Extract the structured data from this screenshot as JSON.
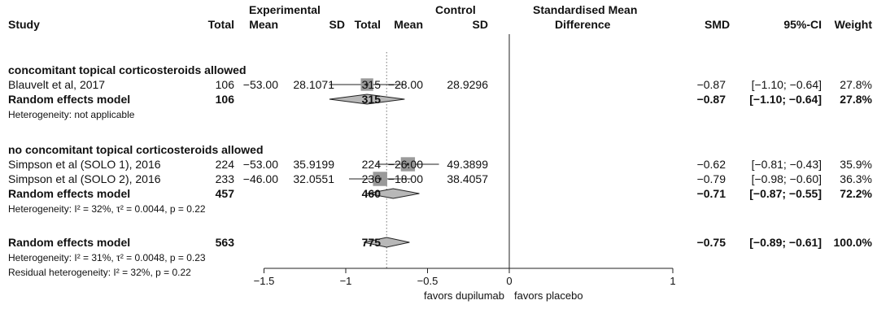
{
  "header": {
    "experimental": "Experimental",
    "control": "Control",
    "smd_line1": "Standardised Mean",
    "smd_line2": "Difference",
    "study": "Study",
    "total_e": "Total",
    "mean_e": "Mean",
    "sd_e": "SD",
    "total_c": "Total",
    "mean_c": "Mean",
    "sd_c": "SD",
    "smd": "SMD",
    "ci": "95%-CI",
    "weight": "Weight"
  },
  "groups": [
    {
      "title": "concomitant topical corticosteroids allowed",
      "studies": [
        {
          "name": "Blauvelt et al, 2017",
          "total_e": "106",
          "mean_e": "−53.00",
          "sd_e": "28.1071",
          "total_c": "315",
          "mean_c": "−28.00",
          "sd_c": "28.9296",
          "smd": "−0.87",
          "ci": "[−1.10; −0.64]",
          "weight": "27.8%",
          "est": -0.87,
          "lo": -1.1,
          "hi": -0.64,
          "w": 27.8
        }
      ],
      "model": {
        "label": "Random effects model",
        "total_e": "106",
        "total_c": "315",
        "smd": "−0.87",
        "ci": "[−1.10; −0.64]",
        "weight": "27.8%",
        "est": -0.87,
        "lo": -1.1,
        "hi": -0.64
      },
      "heterogeneity": "Heterogeneity: not applicable"
    },
    {
      "title": "no concomitant topical corticosteroids allowed",
      "studies": [
        {
          "name": "Simpson et al (SOLO 1), 2016",
          "total_e": "224",
          "mean_e": "−53.00",
          "sd_e": "35.9199",
          "total_c": "224",
          "mean_c": "−26.00",
          "sd_c": "49.3899",
          "smd": "−0.62",
          "ci": "[−0.81; −0.43]",
          "weight": "35.9%",
          "est": -0.62,
          "lo": -0.81,
          "hi": -0.43,
          "w": 35.9
        },
        {
          "name": "Simpson et al (SOLO 2), 2016",
          "total_e": "233",
          "mean_e": "−46.00",
          "sd_e": "32.0551",
          "total_c": "236",
          "mean_c": "−18.00",
          "sd_c": "38.4057",
          "smd": "−0.79",
          "ci": "[−0.98; −0.60]",
          "weight": "36.3%",
          "est": -0.79,
          "lo": -0.98,
          "hi": -0.6,
          "w": 36.3
        }
      ],
      "model": {
        "label": "Random effects model",
        "total_e": "457",
        "total_c": "460",
        "smd": "−0.71",
        "ci": "[−0.87; −0.55]",
        "weight": "72.2%",
        "est": -0.71,
        "lo": -0.87,
        "hi": -0.55
      },
      "heterogeneity": "Heterogeneity: I² = 32%, τ² = 0.0044, p = 0.22"
    }
  ],
  "overall": {
    "label": "Random effects model",
    "total_e": "563",
    "total_c": "775",
    "smd": "−0.75",
    "ci": "[−0.89; −0.61]",
    "weight": "100.0%",
    "est": -0.75,
    "lo": -0.89,
    "hi": -0.61,
    "heterogeneity": "Heterogeneity: I² = 31%, τ² = 0.0048, p = 0.23",
    "residual": "Residual heterogeneity: I² = 32%, p = 0.22"
  },
  "chart_data": {
    "type": "forest",
    "xlim": [
      -1.5,
      1
    ],
    "ticks": [
      -1.5,
      -1,
      -0.5,
      0,
      1
    ],
    "tick_labels": [
      "−1.5",
      "−1",
      "−0.5",
      "0",
      "1"
    ],
    "null_value": 0,
    "overall_estimate_line": -0.75,
    "left_label": "favors dupilumab",
    "right_label": "favors placebo"
  },
  "colors": {
    "box": "#9a9a9a",
    "diamond": "#b8b8b8",
    "line": "#222222",
    "dotted": "#777777"
  }
}
